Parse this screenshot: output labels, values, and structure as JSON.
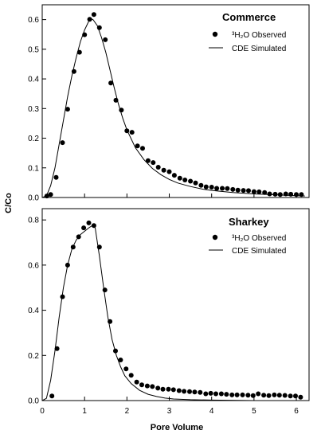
{
  "chart_data": [
    {
      "type": "scatter",
      "title": "Commerce",
      "xlabel": "Pore Volume",
      "ylabel": "C/Co",
      "xlim": [
        0,
        6.3
      ],
      "ylim": [
        0,
        0.65
      ],
      "xticks": [
        "0",
        "1",
        "2",
        "3",
        "4",
        "5",
        "6"
      ],
      "yticks": [
        "0.0",
        "0.1",
        "0.2",
        "0.3",
        "0.4",
        "0.5",
        "0.6"
      ],
      "legend_position": "top-right",
      "series": [
        {
          "name": "³H₂O Observed",
          "style": "markers",
          "x": [
            0.11,
            0.2,
            0.33,
            0.48,
            0.6,
            0.75,
            0.88,
            1.0,
            1.12,
            1.22,
            1.35,
            1.49,
            1.62,
            1.74,
            1.87,
            2.0,
            2.12,
            2.25,
            2.37,
            2.5,
            2.62,
            2.74,
            2.87,
            3.0,
            3.12,
            3.25,
            3.37,
            3.5,
            3.62,
            3.75,
            3.87,
            4.0,
            4.12,
            4.25,
            4.37,
            4.5,
            4.62,
            4.75,
            4.87,
            5.0,
            5.12,
            5.25,
            5.37,
            5.5,
            5.62,
            5.75,
            5.87,
            6.0,
            6.12
          ],
          "y": [
            0.005,
            0.01,
            0.068,
            0.185,
            0.298,
            0.425,
            0.49,
            0.549,
            0.601,
            0.617,
            0.573,
            0.532,
            0.386,
            0.328,
            0.295,
            0.225,
            0.22,
            0.174,
            0.166,
            0.124,
            0.118,
            0.102,
            0.092,
            0.087,
            0.075,
            0.065,
            0.059,
            0.055,
            0.049,
            0.041,
            0.036,
            0.035,
            0.031,
            0.031,
            0.03,
            0.027,
            0.025,
            0.024,
            0.023,
            0.02,
            0.019,
            0.017,
            0.012,
            0.011,
            0.01,
            0.012,
            0.011,
            0.01,
            0.01
          ]
        },
        {
          "name": "CDE Simulated",
          "style": "line",
          "x": [
            0.0,
            0.1,
            0.2,
            0.3,
            0.4,
            0.5,
            0.6,
            0.7,
            0.8,
            0.9,
            1.0,
            1.1,
            1.15,
            1.2,
            1.3,
            1.4,
            1.5,
            1.6,
            1.7,
            1.8,
            1.9,
            2.0,
            2.2,
            2.4,
            2.6,
            2.8,
            3.0,
            3.2,
            3.5,
            3.8,
            4.0,
            4.5,
            5.0,
            5.5,
            6.0,
            6.2
          ],
          "y": [
            0.0,
            0.005,
            0.04,
            0.1,
            0.18,
            0.26,
            0.34,
            0.41,
            0.47,
            0.525,
            0.565,
            0.595,
            0.603,
            0.6,
            0.58,
            0.54,
            0.49,
            0.43,
            0.37,
            0.315,
            0.268,
            0.228,
            0.168,
            0.128,
            0.098,
            0.077,
            0.061,
            0.049,
            0.037,
            0.028,
            0.024,
            0.017,
            0.012,
            0.009,
            0.006,
            0.005
          ]
        }
      ]
    },
    {
      "type": "scatter",
      "title": "Sharkey",
      "xlabel": "Pore Volume",
      "ylabel": "C/Co",
      "xlim": [
        0,
        6.3
      ],
      "ylim": [
        0,
        0.85
      ],
      "xticks": [
        "0",
        "1",
        "2",
        "3",
        "4",
        "5",
        "6"
      ],
      "yticks": [
        "0.0",
        "0.2",
        "0.4",
        "0.6",
        "0.8"
      ],
      "legend_position": "top-right",
      "series": [
        {
          "name": "³H₂O Observed",
          "style": "markers",
          "x": [
            0.23,
            0.35,
            0.48,
            0.6,
            0.73,
            0.86,
            0.98,
            1.1,
            1.22,
            1.35,
            1.48,
            1.6,
            1.73,
            1.85,
            1.98,
            2.1,
            2.23,
            2.35,
            2.48,
            2.6,
            2.73,
            2.85,
            2.98,
            3.1,
            3.23,
            3.35,
            3.48,
            3.6,
            3.73,
            3.86,
            3.98,
            4.1,
            4.23,
            4.35,
            4.48,
            4.6,
            4.73,
            4.86,
            4.98,
            5.1,
            5.23,
            5.35,
            5.48,
            5.6,
            5.73,
            5.86,
            5.98,
            6.1
          ],
          "y": [
            0.02,
            0.23,
            0.46,
            0.6,
            0.68,
            0.725,
            0.765,
            0.787,
            0.775,
            0.68,
            0.49,
            0.35,
            0.22,
            0.18,
            0.14,
            0.112,
            0.082,
            0.07,
            0.065,
            0.062,
            0.055,
            0.05,
            0.05,
            0.048,
            0.044,
            0.041,
            0.04,
            0.038,
            0.036,
            0.03,
            0.032,
            0.03,
            0.03,
            0.028,
            0.025,
            0.025,
            0.025,
            0.024,
            0.022,
            0.03,
            0.024,
            0.022,
            0.025,
            0.024,
            0.023,
            0.02,
            0.02,
            0.015
          ]
        },
        {
          "name": "CDE Simulated",
          "style": "line",
          "x": [
            0.0,
            0.1,
            0.2,
            0.3,
            0.4,
            0.5,
            0.6,
            0.7,
            0.8,
            0.9,
            1.0,
            1.1,
            1.18,
            1.25,
            1.35,
            1.45,
            1.55,
            1.65,
            1.75,
            1.85,
            1.95,
            2.1,
            2.3,
            2.5,
            2.7,
            2.9,
            3.1,
            3.5,
            4.0,
            5.0,
            6.2
          ],
          "y": [
            0.0,
            0.01,
            0.09,
            0.22,
            0.37,
            0.5,
            0.6,
            0.67,
            0.71,
            0.735,
            0.75,
            0.765,
            0.775,
            0.765,
            0.64,
            0.5,
            0.37,
            0.27,
            0.2,
            0.15,
            0.11,
            0.075,
            0.045,
            0.028,
            0.018,
            0.011,
            0.007,
            0.004,
            0.002,
            0.0,
            0.0
          ]
        }
      ]
    }
  ]
}
